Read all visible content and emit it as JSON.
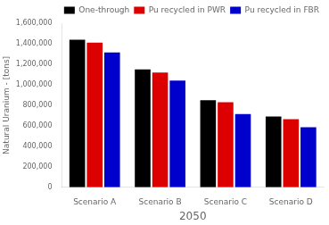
{
  "chart_data": {
    "type": "bar",
    "categories": [
      "Scenario A",
      "Scenario B",
      "Scenario C",
      "Scenario D"
    ],
    "series": [
      {
        "name": "One-through",
        "color": "#000000",
        "values": [
          1440000,
          1150000,
          850000,
          690000
        ]
      },
      {
        "name": "Pu recycled in PWR",
        "color": "#dd0000",
        "values": [
          1410000,
          1120000,
          830000,
          665000
        ]
      },
      {
        "name": "Pu recycled in FBR",
        "color": "#0000cc",
        "values": [
          1315000,
          1040000,
          715000,
          585000
        ]
      }
    ],
    "xlabel": "2050",
    "ylabel": "Natural Uranium - [tons]",
    "ylim": [
      0,
      1600000
    ],
    "yticks": [
      0,
      {
        "value": 200000,
        "label": "200,000"
      },
      {
        "value": 400000,
        "label": "400,000"
      },
      {
        "value": 600000,
        "label": "600,000"
      },
      {
        "value": 800000,
        "label": "800,000"
      },
      {
        "value": 1000000,
        "label": "1,000,000"
      },
      {
        "value": 1200000,
        "label": "1,200,000"
      },
      {
        "value": 1400000,
        "label": "1,400,000"
      },
      {
        "value": 1600000,
        "label": "1,600,000"
      }
    ],
    "grid": false,
    "legend": "upper right"
  }
}
